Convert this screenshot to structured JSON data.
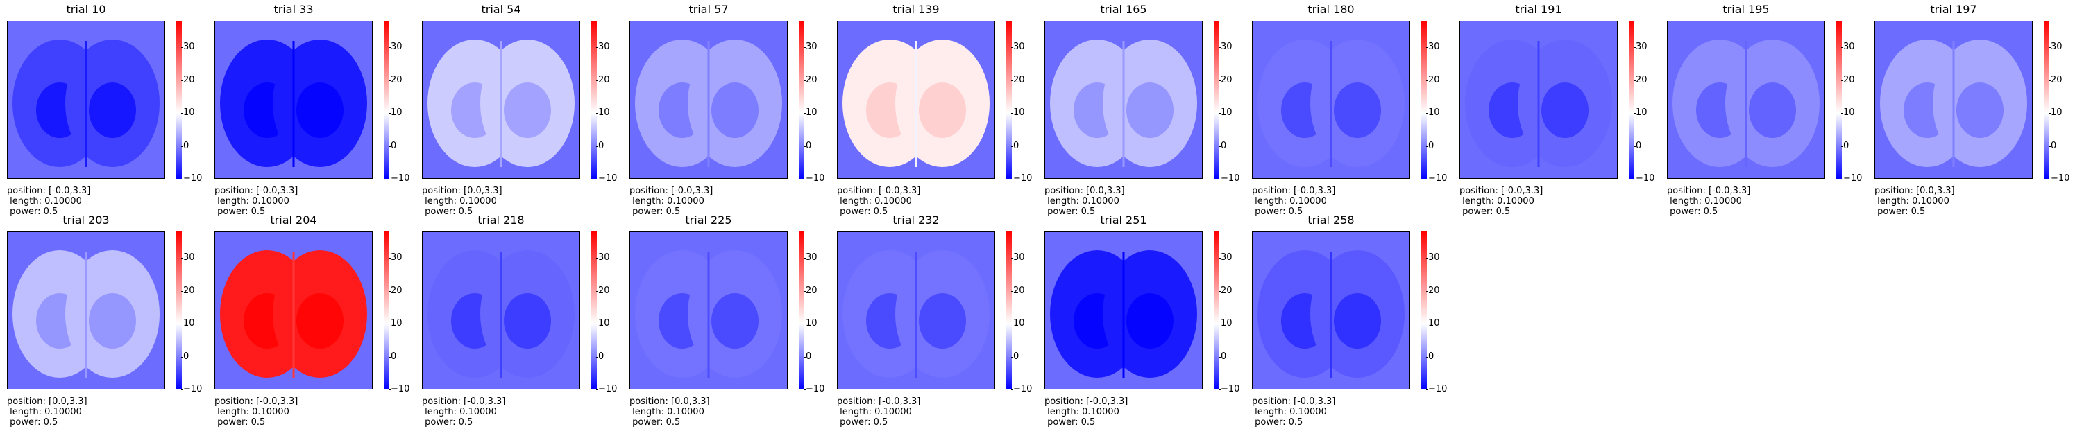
{
  "chart_data": {
    "type": "heatmap",
    "colormap": "bwr",
    "colorbar": {
      "ticks": [
        "−10",
        "0",
        "10",
        "20",
        "30"
      ],
      "range": [
        -10,
        38
      ]
    },
    "panels": [
      {
        "title": "trial 10",
        "position": "position: [-0.0,3.3]",
        "length": " length: 0.10000",
        "power": " power: 0.5",
        "level": -5
      },
      {
        "title": "trial 33",
        "position": "position: [-0.0,3.3]",
        "length": " length: 0.10000",
        "power": " power: 0.5",
        "level": -8
      },
      {
        "title": "trial 54",
        "position": "position: [0.0,3.3]",
        "length": " length: 0.10000",
        "power": " power: 0.5",
        "level": 6
      },
      {
        "title": "trial 57",
        "position": "position: [-0.0,3.3]",
        "length": " length: 0.10000",
        "power": " power: 0.5",
        "level": 3
      },
      {
        "title": "trial 139",
        "position": "position: [-0.0,3.3]",
        "length": " length: 0.10000",
        "power": " power: 0.5",
        "level": 12
      },
      {
        "title": "trial 165",
        "position": "position: [0.0,3.3]",
        "length": " length: 0.10000",
        "power": " power: 0.5",
        "level": 5
      },
      {
        "title": "trial 180",
        "position": "position: [-0.0,3.3]",
        "length": " length: 0.10000",
        "power": " power: 0.5",
        "level": -1
      },
      {
        "title": "trial 191",
        "position": "position: [-0.0,3.3]",
        "length": " length: 0.10000",
        "power": " power: 0.5",
        "level": -2
      },
      {
        "title": "trial 195",
        "position": "position: [-0.0,3.3]",
        "length": " length: 0.10000",
        "power": " power: 0.5",
        "level": 1
      },
      {
        "title": "trial 197",
        "position": "position: [0.0,3.3]",
        "length": " length: 0.10000",
        "power": " power: 0.5",
        "level": 3
      },
      {
        "title": "trial 203",
        "position": "position: [0.0,3.3]",
        "length": " length: 0.10000",
        "power": " power: 0.5",
        "level": 5
      },
      {
        "title": "trial 204",
        "position": "position: [-0.0,3.3]",
        "length": " length: 0.10000",
        "power": " power: 0.5",
        "level": 35
      },
      {
        "title": "trial 218",
        "position": "position: [-0.0,3.3]",
        "length": " length: 0.10000",
        "power": " power: 0.5",
        "level": -2
      },
      {
        "title": "trial 225",
        "position": "position: [0.0,3.3]",
        "length": " length: 0.10000",
        "power": " power: 0.5",
        "level": -1
      },
      {
        "title": "trial 232",
        "position": "position: [-0.0,3.3]",
        "length": " length: 0.10000",
        "power": " power: 0.5",
        "level": -1
      },
      {
        "title": "trial 251",
        "position": "position: [-0.0,3.3]",
        "length": " length: 0.10000",
        "power": " power: 0.5",
        "level": -8
      },
      {
        "title": "trial 258",
        "position": "position: [-0.0,3.3]",
        "length": " length: 0.10000",
        "power": " power: 0.5",
        "level": -3
      }
    ]
  }
}
